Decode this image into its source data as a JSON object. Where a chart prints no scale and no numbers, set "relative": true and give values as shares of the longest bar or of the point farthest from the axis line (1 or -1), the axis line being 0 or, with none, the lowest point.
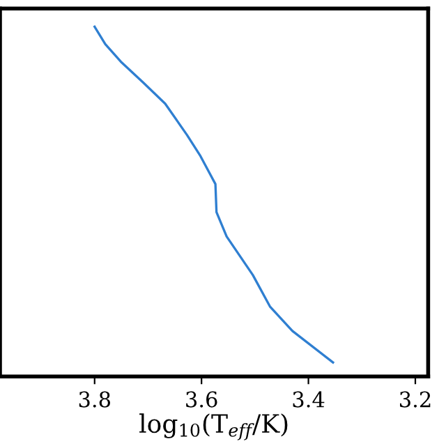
{
  "chart_data": {
    "type": "line",
    "xlabel": "log$_{10}$(T$_{eff}$/K)",
    "relative": true,
    "xlim": [
      3.977,
      3.176
    ],
    "xticks": [
      3.8,
      3.6,
      3.4,
      {
        "value": 3.2,
        "label": "3.2"
      }
    ],
    "tick_labels": "x",
    "grid": false,
    "legend": false,
    "series": [
      {
        "color": "#2f7fd1",
        "x": [
          3.8,
          3.78,
          3.751,
          3.709,
          3.668,
          3.627,
          3.602,
          3.574,
          3.572,
          3.553,
          3.504,
          3.472,
          3.43,
          3.354
        ],
        "values": [
          1,
          0.95,
          0.9,
          0.84,
          0.78,
          0.69,
          0.63,
          0.55,
          0.47,
          0.4,
          0.29,
          0.2,
          0.13,
          0.04
        ]
      }
    ]
  }
}
